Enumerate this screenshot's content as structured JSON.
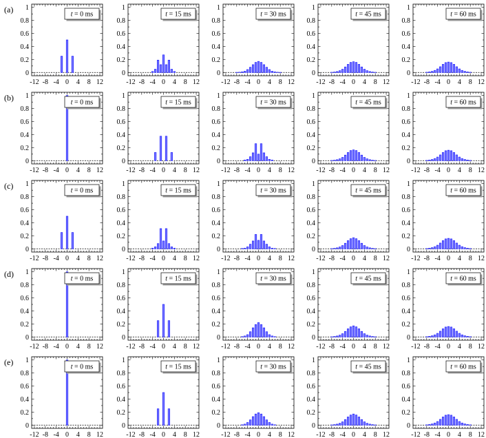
{
  "chart_data": {
    "type": "bar",
    "xlim": [
      -13,
      13
    ],
    "ylim": [
      -0.05,
      1.05
    ],
    "x_ticks": [
      "-12",
      "-8",
      "-4",
      "0",
      "4",
      "8",
      "12"
    ],
    "y_ticks": [
      "0",
      "0.2",
      "0.4",
      "0.6",
      "0.8",
      "1"
    ],
    "grid": false,
    "time_prefix": "t",
    "time_values": [
      "= 0 ms",
      "= 15 ms",
      "= 30 ms",
      "= 45 ms",
      "= 60 ms"
    ],
    "rows": [
      {
        "label": "(a)",
        "panels": [
          {
            "x": [
              -2,
              0,
              2
            ],
            "values": [
              0.25,
              0.5,
              0.25
            ]
          },
          {
            "x": [
              -4,
              -3,
              -2,
              -1,
              0,
              1,
              2,
              3,
              4
            ],
            "values": [
              0.016,
              0.05,
              0.19,
              0.12,
              0.27,
              0.12,
              0.19,
              0.05,
              0.016
            ]
          },
          {
            "x": [
              -8,
              -7,
              -6,
              -5,
              -4,
              -3,
              -2,
              -1,
              0,
              1,
              2,
              3,
              4,
              5,
              6,
              7,
              8
            ],
            "values": [
              0.002,
              0.004,
              0.01,
              0.02,
              0.045,
              0.08,
              0.12,
              0.155,
              0.17,
              0.155,
              0.12,
              0.08,
              0.045,
              0.02,
              0.01,
              0.004,
              0.002
            ]
          },
          {
            "x": [
              -8,
              -7,
              -6,
              -5,
              -4,
              -3,
              -2,
              -1,
              0,
              1,
              2,
              3,
              4,
              5,
              6,
              7,
              8
            ],
            "values": [
              0.003,
              0.007,
              0.015,
              0.028,
              0.05,
              0.085,
              0.125,
              0.155,
              0.165,
              0.155,
              0.125,
              0.085,
              0.05,
              0.028,
              0.015,
              0.007,
              0.003
            ]
          },
          {
            "x": [
              -8,
              -7,
              -6,
              -5,
              -4,
              -3,
              -2,
              -1,
              0,
              1,
              2,
              3,
              4,
              5,
              6,
              7,
              8
            ],
            "values": [
              0.004,
              0.009,
              0.018,
              0.032,
              0.055,
              0.088,
              0.125,
              0.152,
              0.16,
              0.152,
              0.125,
              0.088,
              0.055,
              0.032,
              0.018,
              0.009,
              0.004
            ]
          }
        ]
      },
      {
        "label": "(b)",
        "panels": [
          {
            "x": [
              0
            ],
            "values": [
              1.0
            ]
          },
          {
            "x": [
              -3,
              -1,
              1,
              3
            ],
            "values": [
              0.125,
              0.375,
              0.375,
              0.125
            ]
          },
          {
            "x": [
              -5,
              -4,
              -3,
              -2,
              -1,
              0,
              1,
              2,
              3,
              4,
              5
            ],
            "values": [
              0.01,
              0.02,
              0.06,
              0.12,
              0.26,
              0.1,
              0.26,
              0.12,
              0.06,
              0.02,
              0.01
            ]
          },
          {
            "x": [
              -8,
              -7,
              -6,
              -5,
              -4,
              -3,
              -2,
              -1,
              0,
              1,
              2,
              3,
              4,
              5,
              6,
              7,
              8
            ],
            "values": [
              0.003,
              0.007,
              0.015,
              0.028,
              0.05,
              0.085,
              0.125,
              0.155,
              0.165,
              0.155,
              0.125,
              0.085,
              0.05,
              0.028,
              0.015,
              0.007,
              0.003
            ]
          },
          {
            "x": [
              -8,
              -7,
              -6,
              -5,
              -4,
              -3,
              -2,
              -1,
              0,
              1,
              2,
              3,
              4,
              5,
              6,
              7,
              8
            ],
            "values": [
              0.004,
              0.009,
              0.018,
              0.032,
              0.055,
              0.088,
              0.125,
              0.152,
              0.16,
              0.152,
              0.125,
              0.088,
              0.055,
              0.032,
              0.018,
              0.009,
              0.004
            ]
          }
        ]
      },
      {
        "label": "(c)",
        "panels": [
          {
            "x": [
              -2,
              0,
              2
            ],
            "values": [
              0.25,
              0.5,
              0.25
            ]
          },
          {
            "x": [
              -4,
              -3,
              -2,
              -1,
              0,
              1,
              2,
              3,
              4
            ],
            "values": [
              0.01,
              0.03,
              0.08,
              0.31,
              0.12,
              0.31,
              0.08,
              0.03,
              0.01
            ]
          },
          {
            "x": [
              -6,
              -5,
              -4,
              -3,
              -2,
              -1,
              0,
              1,
              2,
              3,
              4,
              5,
              6
            ],
            "values": [
              0.005,
              0.01,
              0.03,
              0.07,
              0.12,
              0.22,
              0.13,
              0.22,
              0.12,
              0.07,
              0.03,
              0.01,
              0.005
            ]
          },
          {
            "x": [
              -8,
              -7,
              -6,
              -5,
              -4,
              -3,
              -2,
              -1,
              0,
              1,
              2,
              3,
              4,
              5,
              6,
              7,
              8
            ],
            "values": [
              0.003,
              0.007,
              0.015,
              0.028,
              0.05,
              0.085,
              0.125,
              0.155,
              0.17,
              0.155,
              0.125,
              0.085,
              0.05,
              0.028,
              0.015,
              0.007,
              0.003
            ]
          },
          {
            "x": [
              -8,
              -7,
              -6,
              -5,
              -4,
              -3,
              -2,
              -1,
              0,
              1,
              2,
              3,
              4,
              5,
              6,
              7,
              8
            ],
            "values": [
              0.004,
              0.009,
              0.018,
              0.032,
              0.055,
              0.088,
              0.125,
              0.152,
              0.16,
              0.152,
              0.125,
              0.088,
              0.055,
              0.032,
              0.018,
              0.009,
              0.004
            ]
          }
        ]
      },
      {
        "label": "(d)",
        "panels": [
          {
            "x": [
              0
            ],
            "values": [
              1.0
            ]
          },
          {
            "x": [
              -2,
              0,
              2
            ],
            "values": [
              0.25,
              0.5,
              0.25
            ]
          },
          {
            "x": [
              -6,
              -5,
              -4,
              -3,
              -2,
              -1,
              0,
              1,
              2,
              3,
              4,
              5,
              6
            ],
            "values": [
              0.005,
              0.015,
              0.035,
              0.08,
              0.14,
              0.19,
              0.22,
              0.19,
              0.14,
              0.08,
              0.035,
              0.015,
              0.005
            ]
          },
          {
            "x": [
              -8,
              -7,
              -6,
              -5,
              -4,
              -3,
              -2,
              -1,
              0,
              1,
              2,
              3,
              4,
              5,
              6,
              7,
              8
            ],
            "values": [
              0.003,
              0.007,
              0.015,
              0.028,
              0.05,
              0.085,
              0.125,
              0.155,
              0.17,
              0.155,
              0.125,
              0.085,
              0.05,
              0.028,
              0.015,
              0.007,
              0.003
            ]
          },
          {
            "x": [
              -8,
              -7,
              -6,
              -5,
              -4,
              -3,
              -2,
              -1,
              0,
              1,
              2,
              3,
              4,
              5,
              6,
              7,
              8
            ],
            "values": [
              0.004,
              0.009,
              0.018,
              0.032,
              0.055,
              0.088,
              0.125,
              0.152,
              0.16,
              0.152,
              0.125,
              0.088,
              0.055,
              0.032,
              0.018,
              0.009,
              0.004
            ]
          }
        ]
      },
      {
        "label": "(e)",
        "panels": [
          {
            "x": [
              0
            ],
            "values": [
              1.0
            ]
          },
          {
            "x": [
              -2,
              0,
              2
            ],
            "values": [
              0.25,
              0.5,
              0.25
            ]
          },
          {
            "x": [
              -6,
              -5,
              -4,
              -3,
              -2,
              -1,
              0,
              1,
              2,
              3,
              4,
              5,
              6
            ],
            "values": [
              0.005,
              0.015,
              0.04,
              0.08,
              0.13,
              0.17,
              0.19,
              0.17,
              0.13,
              0.08,
              0.04,
              0.015,
              0.005
            ]
          },
          {
            "x": [
              -8,
              -7,
              -6,
              -5,
              -4,
              -3,
              -2,
              -1,
              0,
              1,
              2,
              3,
              4,
              5,
              6,
              7,
              8
            ],
            "values": [
              0.003,
              0.007,
              0.015,
              0.028,
              0.05,
              0.085,
              0.125,
              0.155,
              0.17,
              0.155,
              0.125,
              0.085,
              0.05,
              0.028,
              0.015,
              0.007,
              0.003
            ]
          },
          {
            "x": [
              -8,
              -7,
              -6,
              -5,
              -4,
              -3,
              -2,
              -1,
              0,
              1,
              2,
              3,
              4,
              5,
              6,
              7,
              8
            ],
            "values": [
              0.004,
              0.009,
              0.018,
              0.032,
              0.055,
              0.088,
              0.125,
              0.152,
              0.16,
              0.152,
              0.125,
              0.088,
              0.055,
              0.032,
              0.018,
              0.009,
              0.004
            ]
          }
        ]
      }
    ],
    "colors": {
      "bar_fill": "#8080ff",
      "bar_stroke": "#1a1aff",
      "baseline": "#000000",
      "shadow": "#a0a0a0"
    }
  }
}
